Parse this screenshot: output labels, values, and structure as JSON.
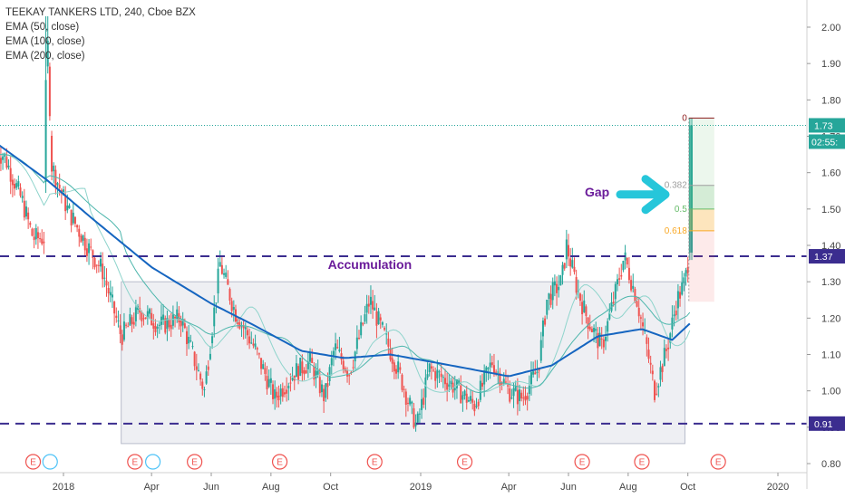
{
  "legend": {
    "title": "TEEKAY TANKERS LTD, 240, Cboe BZX",
    "ema1": "EMA (50, close)",
    "ema2": "EMA (100, close)",
    "ema3": "EMA (200, close)"
  },
  "colors": {
    "up": "#26a69a",
    "down": "#ef5350",
    "ema50": "#8fd4cc",
    "ema100": "#4db6ac",
    "ema200": "#1565c0",
    "dashed": "#3b2d8f",
    "annotation": "#6a1b9a",
    "arrow": "#26c6da",
    "price_badge": "#26a69a",
    "level_badge": "#3b2d8f"
  },
  "chart_data": {
    "type": "candlestick",
    "title": "TEEKAY TANKERS LTD, 240, Cboe BZX",
    "ylim": [
      0.77,
      2.05
    ],
    "y_ticks": [
      "0.80",
      "0.90",
      "1.00",
      "1.10",
      "1.20",
      "1.30",
      "1.40",
      "1.50",
      "1.60",
      "1.70",
      "1.80",
      "1.90",
      "2.00"
    ],
    "x_ticks": [
      "2018",
      "Apr",
      "Jun",
      "Aug",
      "Oct",
      "2019",
      "Apr",
      "Jun",
      "Aug",
      "Oct",
      "2020"
    ],
    "price_path": [
      {
        "t": "2017-11-01",
        "p": 1.65
      },
      {
        "t": "2017-11-20",
        "p": 1.52
      },
      {
        "t": "2017-12-01",
        "p": 1.42
      },
      {
        "t": "2017-12-12",
        "p": 1.42
      },
      {
        "t": "2017-12-15",
        "p": 2.03
      },
      {
        "t": "2017-12-20",
        "p": 1.62
      },
      {
        "t": "2018-01-05",
        "p": 1.5
      },
      {
        "t": "2018-01-25",
        "p": 1.4
      },
      {
        "t": "2018-02-10",
        "p": 1.33
      },
      {
        "t": "2018-03-01",
        "p": 1.15
      },
      {
        "t": "2018-03-20",
        "p": 1.22
      },
      {
        "t": "2018-04-10",
        "p": 1.18
      },
      {
        "t": "2018-05-01",
        "p": 1.2
      },
      {
        "t": "2018-05-25",
        "p": 1.0
      },
      {
        "t": "2018-06-10",
        "p": 1.35
      },
      {
        "t": "2018-06-25",
        "p": 1.22
      },
      {
        "t": "2018-07-15",
        "p": 1.12
      },
      {
        "t": "2018-08-05",
        "p": 0.98
      },
      {
        "t": "2018-08-25",
        "p": 1.05
      },
      {
        "t": "2018-09-10",
        "p": 1.08
      },
      {
        "t": "2018-09-25",
        "p": 0.98
      },
      {
        "t": "2018-10-05",
        "p": 1.12
      },
      {
        "t": "2018-10-20",
        "p": 1.05
      },
      {
        "t": "2018-11-10",
        "p": 1.25
      },
      {
        "t": "2018-11-25",
        "p": 1.15
      },
      {
        "t": "2018-12-10",
        "p": 1.05
      },
      {
        "t": "2018-12-28",
        "p": 0.9
      },
      {
        "t": "2019-01-10",
        "p": 1.06
      },
      {
        "t": "2019-02-01",
        "p": 1.02
      },
      {
        "t": "2019-02-25",
        "p": 0.96
      },
      {
        "t": "2019-03-15",
        "p": 1.08
      },
      {
        "t": "2019-04-01",
        "p": 1.0
      },
      {
        "t": "2019-04-15",
        "p": 0.98
      },
      {
        "t": "2019-05-01",
        "p": 1.06
      },
      {
        "t": "2019-05-10",
        "p": 1.25
      },
      {
        "t": "2019-05-25",
        "p": 1.3
      },
      {
        "t": "2019-05-30",
        "p": 1.4
      },
      {
        "t": "2019-06-10",
        "p": 1.28
      },
      {
        "t": "2019-06-20",
        "p": 1.2
      },
      {
        "t": "2019-07-05",
        "p": 1.12
      },
      {
        "t": "2019-07-20",
        "p": 1.28
      },
      {
        "t": "2019-07-28",
        "p": 1.37
      },
      {
        "t": "2019-08-10",
        "p": 1.25
      },
      {
        "t": "2019-08-20",
        "p": 1.12
      },
      {
        "t": "2019-08-28",
        "p": 1.0
      },
      {
        "t": "2019-09-10",
        "p": 1.12
      },
      {
        "t": "2019-09-20",
        "p": 1.25
      },
      {
        "t": "2019-09-28",
        "p": 1.3
      },
      {
        "t": "2019-10-02",
        "p": 1.37
      },
      {
        "t": "2019-10-05",
        "p": 1.73
      }
    ],
    "ema200_path": [
      {
        "t": "2017-10-25",
        "p": 1.68
      },
      {
        "t": "2017-12-15",
        "p": 1.58
      },
      {
        "t": "2018-02-01",
        "p": 1.47
      },
      {
        "t": "2018-04-01",
        "p": 1.34
      },
      {
        "t": "2018-06-01",
        "p": 1.24
      },
      {
        "t": "2018-07-15",
        "p": 1.18
      },
      {
        "t": "2018-09-01",
        "p": 1.11
      },
      {
        "t": "2018-10-15",
        "p": 1.09
      },
      {
        "t": "2018-12-01",
        "p": 1.1
      },
      {
        "t": "2019-02-01",
        "p": 1.07
      },
      {
        "t": "2019-04-01",
        "p": 1.04
      },
      {
        "t": "2019-05-15",
        "p": 1.07
      },
      {
        "t": "2019-07-01",
        "p": 1.15
      },
      {
        "t": "2019-08-15",
        "p": 1.17
      },
      {
        "t": "2019-09-15",
        "p": 1.14
      },
      {
        "t": "2019-10-05",
        "p": 1.19
      }
    ],
    "levels": [
      {
        "value": 1.37,
        "label": "1.37"
      },
      {
        "value": 0.91,
        "label": "0.91"
      }
    ],
    "last_price": {
      "value": 1.73,
      "label": "1.73",
      "countdown": "02:55:"
    },
    "accumulation_box": {
      "t_start": "2018-03-01",
      "t_end": "2019-09-28",
      "p_low": 0.855,
      "p_high": 1.3,
      "label": "Accumulation"
    },
    "gap_label": "Gap",
    "fib": {
      "t_start": "2019-10-02",
      "t_end": "2019-10-28",
      "levels": [
        {
          "ratio": "0",
          "price": 1.75,
          "color": "#8d1b1b"
        },
        {
          "ratio": "0.382",
          "price": 1.565,
          "color": "#9e9e9e"
        },
        {
          "ratio": "0.5",
          "price": 1.5,
          "color": "#66bb6a"
        },
        {
          "ratio": "0.618",
          "price": 1.44,
          "color": "#f9a825"
        }
      ],
      "extra_bottom": 1.245,
      "mid_level": 1.37
    },
    "events": {
      "dates": [
        "2017-12-01",
        "2018-03-15",
        "2018-05-15",
        "2018-08-10",
        "2018-11-15",
        "2019-02-15",
        "2019-06-15",
        "2019-08-15",
        "2019-11-01"
      ],
      "symbol": "E",
      "d_dates": [
        "2017-12-10",
        "2018-03-25"
      ]
    }
  }
}
